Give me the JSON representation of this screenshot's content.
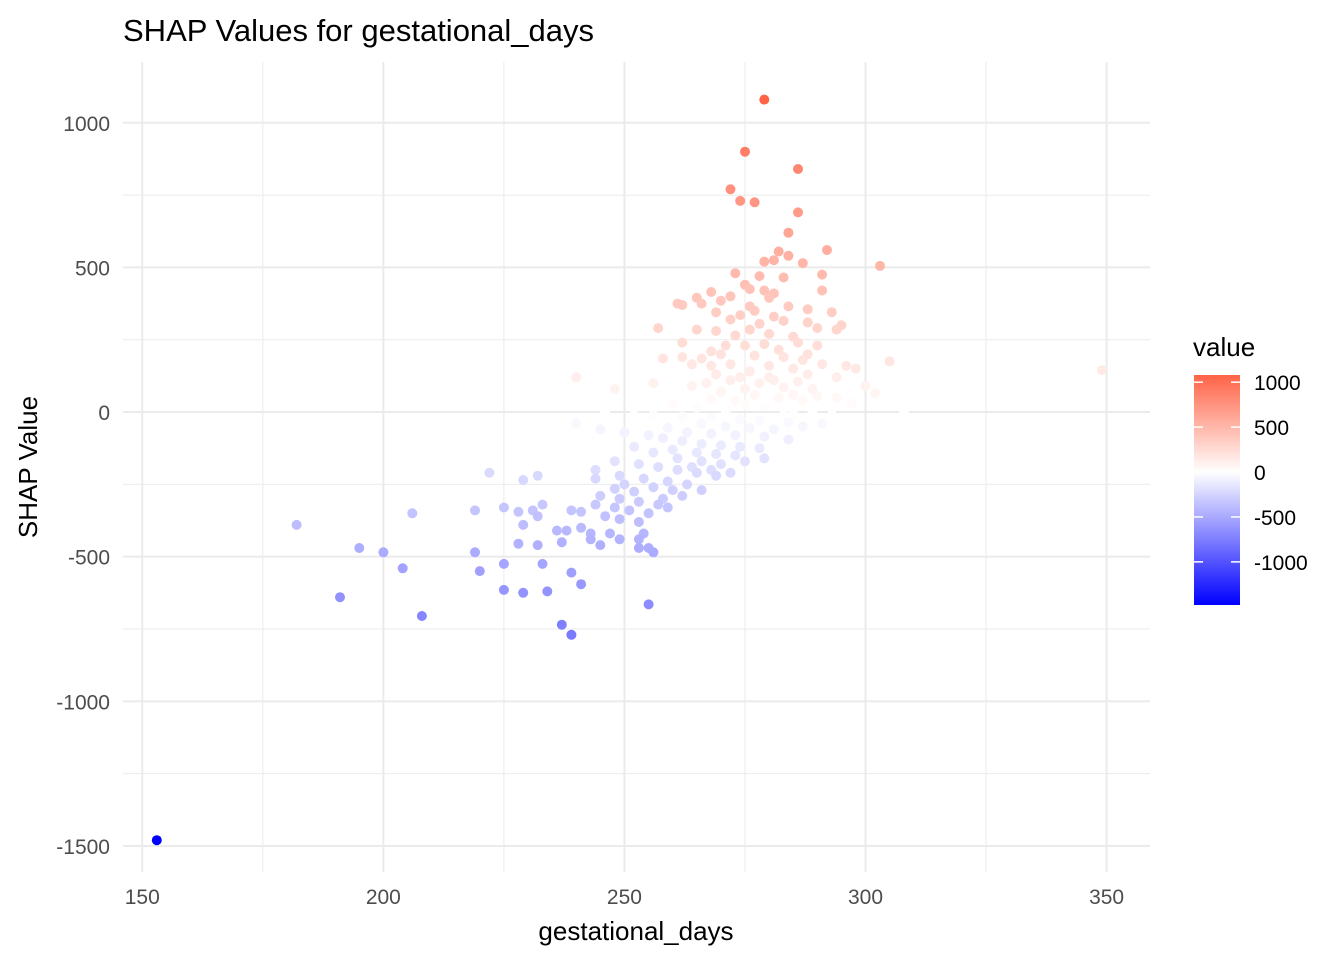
{
  "chart_data": {
    "type": "scatter",
    "title": "SHAP Values for gestational_days",
    "xlabel": "gestational_days",
    "ylabel": "SHAP Value",
    "xlim": [
      146,
      359
    ],
    "ylim": [
      -1590,
      1210
    ],
    "x_ticks": [
      150,
      200,
      250,
      300,
      350
    ],
    "y_ticks": [
      -1500,
      -1000,
      -500,
      0,
      500,
      1000
    ],
    "grid": true,
    "legend": {
      "title": "value",
      "position": "right",
      "labels": [
        "1000",
        "500",
        "0",
        "-500",
        "-1000"
      ],
      "label_values": [
        1000,
        500,
        0,
        -500,
        -1000
      ],
      "range": [
        -1480,
        1080
      ]
    },
    "colors": {
      "high": "#ff6347",
      "mid": "#ffffff",
      "low": "#0000ff",
      "grid": "#ebebeb"
    },
    "points": [
      {
        "x": 279,
        "y": 1080
      },
      {
        "x": 275,
        "y": 900
      },
      {
        "x": 286,
        "y": 840
      },
      {
        "x": 272,
        "y": 770
      },
      {
        "x": 274,
        "y": 730
      },
      {
        "x": 277,
        "y": 725
      },
      {
        "x": 286,
        "y": 690
      },
      {
        "x": 284,
        "y": 620
      },
      {
        "x": 292,
        "y": 560
      },
      {
        "x": 282,
        "y": 555
      },
      {
        "x": 284,
        "y": 540
      },
      {
        "x": 279,
        "y": 520
      },
      {
        "x": 281,
        "y": 525
      },
      {
        "x": 287,
        "y": 515
      },
      {
        "x": 303,
        "y": 505
      },
      {
        "x": 273,
        "y": 480
      },
      {
        "x": 278,
        "y": 470
      },
      {
        "x": 291,
        "y": 475
      },
      {
        "x": 283,
        "y": 465
      },
      {
        "x": 275,
        "y": 440
      },
      {
        "x": 276,
        "y": 425
      },
      {
        "x": 279,
        "y": 420
      },
      {
        "x": 268,
        "y": 415
      },
      {
        "x": 281,
        "y": 410
      },
      {
        "x": 291,
        "y": 420
      },
      {
        "x": 265,
        "y": 395
      },
      {
        "x": 272,
        "y": 400
      },
      {
        "x": 280,
        "y": 395
      },
      {
        "x": 266,
        "y": 375
      },
      {
        "x": 262,
        "y": 370
      },
      {
        "x": 270,
        "y": 385
      },
      {
        "x": 284,
        "y": 365
      },
      {
        "x": 276,
        "y": 365
      },
      {
        "x": 261,
        "y": 375
      },
      {
        "x": 277,
        "y": 350
      },
      {
        "x": 288,
        "y": 355
      },
      {
        "x": 293,
        "y": 345
      },
      {
        "x": 269,
        "y": 345
      },
      {
        "x": 274,
        "y": 335
      },
      {
        "x": 281,
        "y": 330
      },
      {
        "x": 288,
        "y": 310
      },
      {
        "x": 295,
        "y": 300
      },
      {
        "x": 272,
        "y": 320
      },
      {
        "x": 283,
        "y": 315
      },
      {
        "x": 278,
        "y": 305
      },
      {
        "x": 257,
        "y": 290
      },
      {
        "x": 265,
        "y": 285
      },
      {
        "x": 269,
        "y": 280
      },
      {
        "x": 276,
        "y": 285
      },
      {
        "x": 290,
        "y": 290
      },
      {
        "x": 294,
        "y": 285
      },
      {
        "x": 280,
        "y": 270
      },
      {
        "x": 273,
        "y": 265
      },
      {
        "x": 285,
        "y": 260
      },
      {
        "x": 262,
        "y": 240
      },
      {
        "x": 271,
        "y": 230
      },
      {
        "x": 279,
        "y": 235
      },
      {
        "x": 286,
        "y": 240
      },
      {
        "x": 290,
        "y": 230
      },
      {
        "x": 275,
        "y": 230
      },
      {
        "x": 268,
        "y": 210
      },
      {
        "x": 282,
        "y": 215
      },
      {
        "x": 288,
        "y": 200
      },
      {
        "x": 258,
        "y": 185
      },
      {
        "x": 262,
        "y": 190
      },
      {
        "x": 266,
        "y": 185
      },
      {
        "x": 270,
        "y": 200
      },
      {
        "x": 277,
        "y": 195
      },
      {
        "x": 283,
        "y": 190
      },
      {
        "x": 287,
        "y": 180
      },
      {
        "x": 296,
        "y": 160
      },
      {
        "x": 305,
        "y": 175
      },
      {
        "x": 298,
        "y": 150
      },
      {
        "x": 291,
        "y": 165
      },
      {
        "x": 272,
        "y": 165
      },
      {
        "x": 280,
        "y": 160
      },
      {
        "x": 349,
        "y": 145
      },
      {
        "x": 264,
        "y": 165
      },
      {
        "x": 268,
        "y": 160
      },
      {
        "x": 285,
        "y": 150
      },
      {
        "x": 276,
        "y": 140
      },
      {
        "x": 274,
        "y": 120
      },
      {
        "x": 269,
        "y": 130
      },
      {
        "x": 280,
        "y": 120
      },
      {
        "x": 288,
        "y": 130
      },
      {
        "x": 294,
        "y": 120
      },
      {
        "x": 240,
        "y": 120
      },
      {
        "x": 281,
        "y": 110
      },
      {
        "x": 278,
        "y": 100
      },
      {
        "x": 272,
        "y": 110
      },
      {
        "x": 286,
        "y": 105
      },
      {
        "x": 256,
        "y": 100
      },
      {
        "x": 264,
        "y": 90
      },
      {
        "x": 267,
        "y": 100
      },
      {
        "x": 275,
        "y": 80
      },
      {
        "x": 283,
        "y": 85
      },
      {
        "x": 289,
        "y": 80
      },
      {
        "x": 300,
        "y": 90
      },
      {
        "x": 248,
        "y": 80
      },
      {
        "x": 270,
        "y": 70
      },
      {
        "x": 277,
        "y": 60
      },
      {
        "x": 282,
        "y": 50
      },
      {
        "x": 285,
        "y": 60
      },
      {
        "x": 290,
        "y": 55
      },
      {
        "x": 302,
        "y": 65
      },
      {
        "x": 294,
        "y": 50
      },
      {
        "x": 273,
        "y": 40
      },
      {
        "x": 268,
        "y": 45
      },
      {
        "x": 287,
        "y": 40
      },
      {
        "x": 297,
        "y": 30
      },
      {
        "x": 260,
        "y": 30
      },
      {
        "x": 275,
        "y": 25
      },
      {
        "x": 279,
        "y": 20
      },
      {
        "x": 283,
        "y": 10
      },
      {
        "x": 265,
        "y": 15
      },
      {
        "x": 271,
        "y": 5
      },
      {
        "x": 285,
        "y": -5
      },
      {
        "x": 289,
        "y": 0
      },
      {
        "x": 293,
        "y": 10
      },
      {
        "x": 308,
        "y": 0
      },
      {
        "x": 246,
        "y": 0
      },
      {
        "x": 252,
        "y": 10
      },
      {
        "x": 256,
        "y": -10
      },
      {
        "x": 262,
        "y": -15
      },
      {
        "x": 268,
        "y": -20
      },
      {
        "x": 274,
        "y": -25
      },
      {
        "x": 278,
        "y": -30
      },
      {
        "x": 284,
        "y": -35
      },
      {
        "x": 291,
        "y": -40
      },
      {
        "x": 266,
        "y": -40
      },
      {
        "x": 271,
        "y": -50
      },
      {
        "x": 276,
        "y": -55
      },
      {
        "x": 281,
        "y": -60
      },
      {
        "x": 287,
        "y": -50
      },
      {
        "x": 259,
        "y": -55
      },
      {
        "x": 263,
        "y": -70
      },
      {
        "x": 268,
        "y": -75
      },
      {
        "x": 273,
        "y": -80
      },
      {
        "x": 279,
        "y": -85
      },
      {
        "x": 284,
        "y": -95
      },
      {
        "x": 240,
        "y": -40
      },
      {
        "x": 245,
        "y": -60
      },
      {
        "x": 250,
        "y": -70
      },
      {
        "x": 255,
        "y": -80
      },
      {
        "x": 258,
        "y": -90
      },
      {
        "x": 262,
        "y": -100
      },
      {
        "x": 266,
        "y": -110
      },
      {
        "x": 270,
        "y": -115
      },
      {
        "x": 274,
        "y": -120
      },
      {
        "x": 278,
        "y": -125
      },
      {
        "x": 260,
        "y": -130
      },
      {
        "x": 265,
        "y": -140
      },
      {
        "x": 269,
        "y": -145
      },
      {
        "x": 273,
        "y": -150
      },
      {
        "x": 252,
        "y": -120
      },
      {
        "x": 256,
        "y": -140
      },
      {
        "x": 261,
        "y": -160
      },
      {
        "x": 266,
        "y": -170
      },
      {
        "x": 270,
        "y": -180
      },
      {
        "x": 275,
        "y": -170
      },
      {
        "x": 279,
        "y": -160
      },
      {
        "x": 264,
        "y": -190
      },
      {
        "x": 268,
        "y": -200
      },
      {
        "x": 272,
        "y": -210
      },
      {
        "x": 248,
        "y": -170
      },
      {
        "x": 253,
        "y": -180
      },
      {
        "x": 257,
        "y": -190
      },
      {
        "x": 261,
        "y": -200
      },
      {
        "x": 265,
        "y": -210
      },
      {
        "x": 269,
        "y": -220
      },
      {
        "x": 244,
        "y": -200
      },
      {
        "x": 249,
        "y": -220
      },
      {
        "x": 254,
        "y": -230
      },
      {
        "x": 259,
        "y": -240
      },
      {
        "x": 263,
        "y": -250
      },
      {
        "x": 222,
        "y": -210
      },
      {
        "x": 232,
        "y": -220
      },
      {
        "x": 244,
        "y": -230
      },
      {
        "x": 250,
        "y": -250
      },
      {
        "x": 256,
        "y": -260
      },
      {
        "x": 260,
        "y": -270
      },
      {
        "x": 266,
        "y": -270
      },
      {
        "x": 229,
        "y": -235
      },
      {
        "x": 248,
        "y": -265
      },
      {
        "x": 252,
        "y": -275
      },
      {
        "x": 245,
        "y": -290
      },
      {
        "x": 249,
        "y": -300
      },
      {
        "x": 258,
        "y": -300
      },
      {
        "x": 262,
        "y": -290
      },
      {
        "x": 253,
        "y": -310
      },
      {
        "x": 257,
        "y": -320
      },
      {
        "x": 244,
        "y": -320
      },
      {
        "x": 248,
        "y": -330
      },
      {
        "x": 251,
        "y": -340
      },
      {
        "x": 255,
        "y": -350
      },
      {
        "x": 259,
        "y": -330
      },
      {
        "x": 219,
        "y": -340
      },
      {
        "x": 225,
        "y": -330
      },
      {
        "x": 228,
        "y": -345
      },
      {
        "x": 231,
        "y": -340
      },
      {
        "x": 233,
        "y": -320
      },
      {
        "x": 239,
        "y": -340
      },
      {
        "x": 241,
        "y": -345
      },
      {
        "x": 246,
        "y": -360
      },
      {
        "x": 249,
        "y": -370
      },
      {
        "x": 253,
        "y": -380
      },
      {
        "x": 229,
        "y": -390
      },
      {
        "x": 232,
        "y": -360
      },
      {
        "x": 236,
        "y": -410
      },
      {
        "x": 238,
        "y": -410
      },
      {
        "x": 241,
        "y": -400
      },
      {
        "x": 243,
        "y": -420
      },
      {
        "x": 247,
        "y": -420
      },
      {
        "x": 254,
        "y": -420
      },
      {
        "x": 243,
        "y": -440
      },
      {
        "x": 182,
        "y": -390
      },
      {
        "x": 206,
        "y": -350
      },
      {
        "x": 195,
        "y": -470
      },
      {
        "x": 200,
        "y": -485
      },
      {
        "x": 219,
        "y": -485
      },
      {
        "x": 228,
        "y": -455
      },
      {
        "x": 232,
        "y": -460
      },
      {
        "x": 237,
        "y": -450
      },
      {
        "x": 245,
        "y": -460
      },
      {
        "x": 249,
        "y": -440
      },
      {
        "x": 253,
        "y": -440
      },
      {
        "x": 253,
        "y": -470
      },
      {
        "x": 255,
        "y": -470
      },
      {
        "x": 256,
        "y": -485
      },
      {
        "x": 204,
        "y": -540
      },
      {
        "x": 220,
        "y": -550
      },
      {
        "x": 225,
        "y": -525
      },
      {
        "x": 233,
        "y": -525
      },
      {
        "x": 239,
        "y": -555
      },
      {
        "x": 225,
        "y": -615
      },
      {
        "x": 229,
        "y": -625
      },
      {
        "x": 234,
        "y": -620
      },
      {
        "x": 241,
        "y": -595
      },
      {
        "x": 191,
        "y": -640
      },
      {
        "x": 208,
        "y": -705
      },
      {
        "x": 255,
        "y": -665
      },
      {
        "x": 237,
        "y": -735
      },
      {
        "x": 239,
        "y": -770
      },
      {
        "x": 153,
        "y": -1480
      }
    ]
  }
}
